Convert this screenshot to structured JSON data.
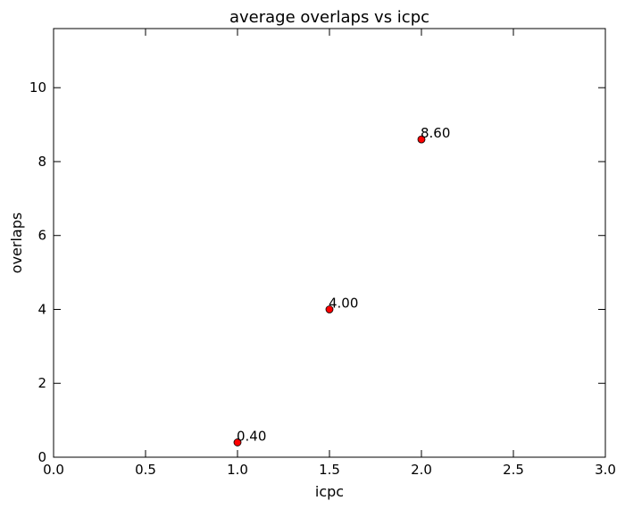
{
  "chart_data": {
    "type": "scatter",
    "title": "average overlaps vs icpc",
    "xlabel": "icpc",
    "ylabel": "overlaps",
    "xlim": [
      0,
      3
    ],
    "ylim": [
      0,
      11.6
    ],
    "xticks": [
      "0.0",
      "0.5",
      "1.0",
      "1.5",
      "2.0",
      "2.5",
      "3.0"
    ],
    "yticks": [
      "0",
      "2",
      "4",
      "6",
      "8",
      "10"
    ],
    "grid": false,
    "legend": "none",
    "marker_color": "#ff0000",
    "series": [
      {
        "points": [
          {
            "x": 1.0,
            "y": 0.4,
            "label": "0.40"
          },
          {
            "x": 1.5,
            "y": 4.0,
            "label": "4.00"
          },
          {
            "x": 2.0,
            "y": 8.6,
            "label": "8.60"
          }
        ]
      }
    ]
  }
}
